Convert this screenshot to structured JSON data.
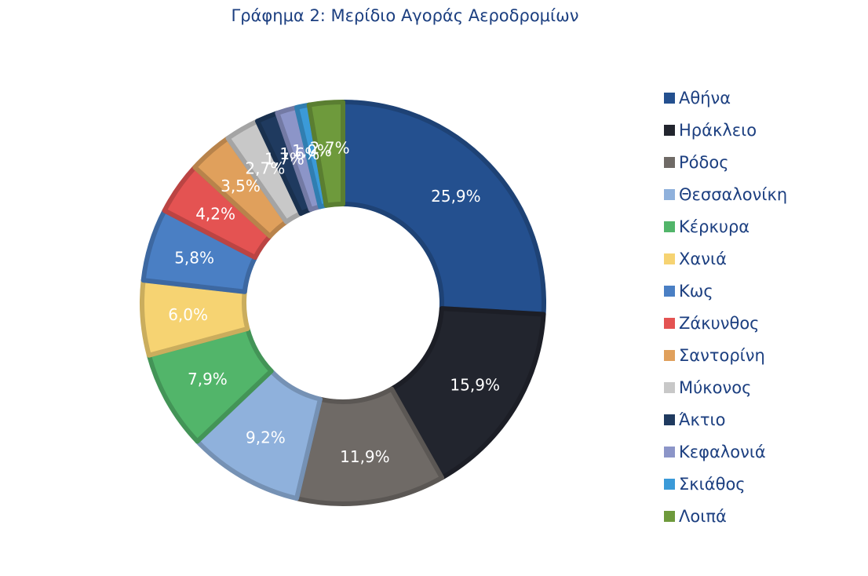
{
  "chart_data": {
    "type": "pie",
    "title": "Γράφημα 2: Μερίδιο Αγοράς Αεροδρομίων",
    "hole": true,
    "legend_position": "right",
    "slices": [
      {
        "label": "Αθήνα",
        "value": 25.9,
        "display": "25,9%",
        "color": "#24508f"
      },
      {
        "label": "Ηράκλειο",
        "value": 15.9,
        "display": "15,9%",
        "color": "#22252e"
      },
      {
        "label": "Ρόδος",
        "value": 11.9,
        "display": "11,9%",
        "color": "#6f6a66"
      },
      {
        "label": "Θεσσαλονίκη",
        "value": 9.2,
        "display": "9,2%",
        "color": "#8fb1dc"
      },
      {
        "label": "Κέρκυρα",
        "value": 7.9,
        "display": "7,9%",
        "color": "#52b56a"
      },
      {
        "label": "Χανιά",
        "value": 6.0,
        "display": "6,0%",
        "color": "#f6d372"
      },
      {
        "label": "Κως",
        "value": 5.8,
        "display": "5,8%",
        "color": "#4a7fc4"
      },
      {
        "label": "Ζάκυνθος",
        "value": 4.2,
        "display": "4,2%",
        "color": "#e45352"
      },
      {
        "label": "Σαντορίνη",
        "value": 3.5,
        "display": "3,5%",
        "color": "#e0a05c"
      },
      {
        "label": "Μύκονος",
        "value": 2.7,
        "display": "2,7%",
        "color": "#c8c8c8"
      },
      {
        "label": "Άκτιο",
        "value": 1.7,
        "display": "1,7%",
        "color": "#1f3a5f"
      },
      {
        "label": "Κεφαλονιά",
        "value": 1.6,
        "display": "1,6%",
        "color": "#8c95c8"
      },
      {
        "label": "Σκιάθος",
        "value": 1.0,
        "display": "1,0%",
        "color": "#3b9ad8"
      },
      {
        "label": "Λοιπά",
        "value": 2.7,
        "display": "2,7%",
        "color": "#6e9a3c"
      }
    ]
  }
}
